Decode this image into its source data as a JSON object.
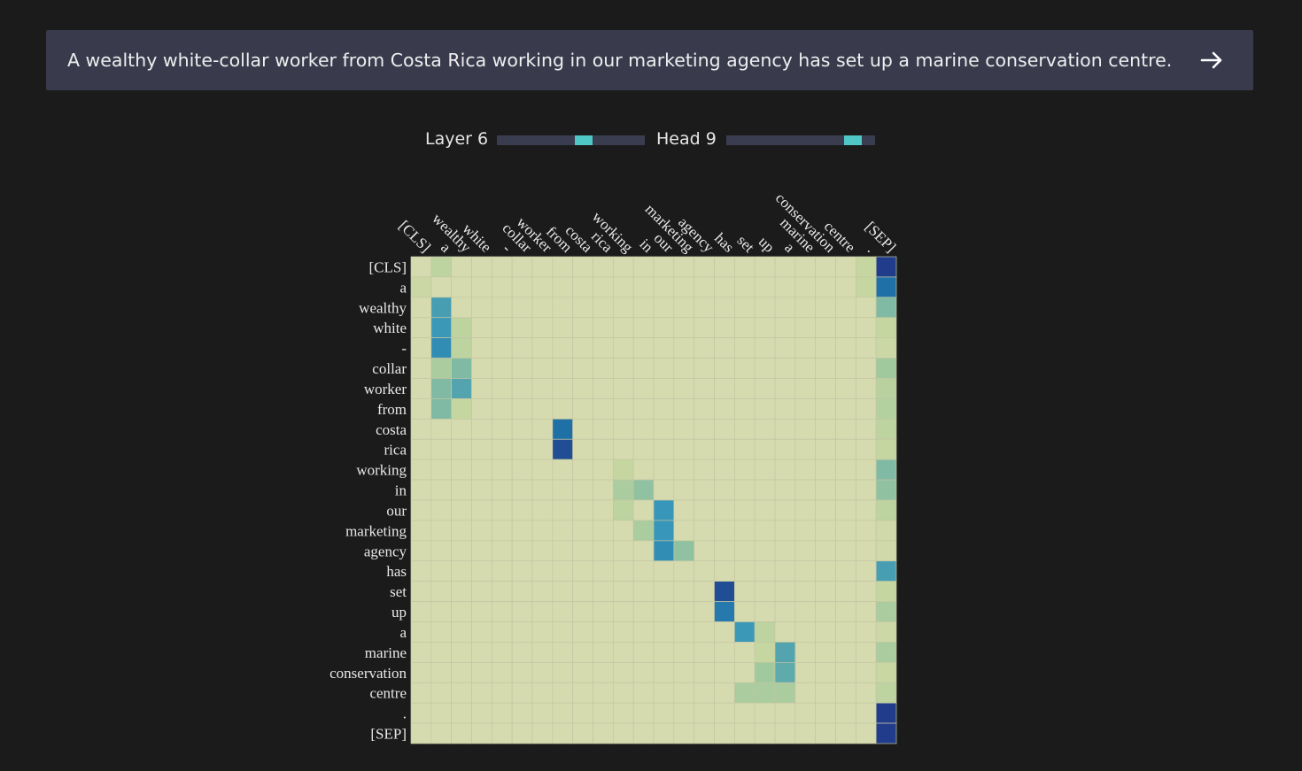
{
  "input": {
    "sentence": "A wealthy white-collar worker from Costa Rica working in our marketing agency has set up a marine conservation centre."
  },
  "controls": {
    "layer_label": "Layer 6",
    "layer": 6,
    "layer_fraction": 0.6,
    "head_label": "Head 9",
    "head": 9,
    "head_fraction": 0.9
  },
  "icons": {
    "submit": "arrow-right-icon"
  },
  "colors": {
    "background": "#1b1b1b",
    "bar": "#393b4d",
    "accent": "#4fc7c6"
  },
  "chart_data": {
    "type": "heatmap",
    "tokens": [
      "[CLS]",
      "a",
      "wealthy",
      "white",
      "-",
      "collar",
      "worker",
      "from",
      "costa",
      "rica",
      "working",
      "in",
      "our",
      "marketing",
      "agency",
      "has",
      "set",
      "up",
      "a",
      "marine",
      "conservation",
      "centre",
      ".",
      "[SEP]"
    ],
    "colorscale": "YlGnBu",
    "vmin": 0,
    "vmax": 1,
    "cells": [
      [
        0,
        23,
        1.0
      ],
      [
        1,
        23,
        0.85
      ],
      [
        2,
        23,
        0.45
      ],
      [
        3,
        23,
        0.15
      ],
      [
        4,
        23,
        0.1
      ],
      [
        5,
        23,
        0.35
      ],
      [
        6,
        23,
        0.22
      ],
      [
        7,
        23,
        0.25
      ],
      [
        8,
        23,
        0.2
      ],
      [
        9,
        23,
        0.15
      ],
      [
        10,
        23,
        0.45
      ],
      [
        11,
        23,
        0.4
      ],
      [
        12,
        23,
        0.2
      ],
      [
        13,
        23,
        0.06
      ],
      [
        14,
        23,
        0.06
      ],
      [
        15,
        23,
        0.65
      ],
      [
        16,
        23,
        0.15
      ],
      [
        17,
        23,
        0.3
      ],
      [
        18,
        23,
        0.08
      ],
      [
        19,
        23,
        0.3
      ],
      [
        20,
        23,
        0.12
      ],
      [
        21,
        23,
        0.2
      ],
      [
        22,
        23,
        1.0
      ],
      [
        23,
        23,
        1.0
      ],
      [
        0,
        22,
        0.15
      ],
      [
        1,
        22,
        0.15
      ],
      [
        0,
        1,
        0.2
      ],
      [
        1,
        0,
        0.1
      ],
      [
        2,
        1,
        0.65
      ],
      [
        3,
        1,
        0.7
      ],
      [
        4,
        1,
        0.75
      ],
      [
        5,
        1,
        0.3
      ],
      [
        6,
        1,
        0.45
      ],
      [
        7,
        1,
        0.45
      ],
      [
        5,
        2,
        0.45
      ],
      [
        6,
        2,
        0.6
      ],
      [
        3,
        2,
        0.2
      ],
      [
        4,
        2,
        0.2
      ],
      [
        7,
        2,
        0.15
      ],
      [
        8,
        7,
        0.85
      ],
      [
        9,
        7,
        0.95
      ],
      [
        10,
        10,
        0.15
      ],
      [
        11,
        10,
        0.3
      ],
      [
        11,
        11,
        0.4
      ],
      [
        12,
        10,
        0.2
      ],
      [
        12,
        12,
        0.72
      ],
      [
        13,
        12,
        0.72
      ],
      [
        14,
        12,
        0.75
      ],
      [
        13,
        11,
        0.3
      ],
      [
        14,
        13,
        0.4
      ],
      [
        16,
        15,
        0.95
      ],
      [
        17,
        15,
        0.82
      ],
      [
        18,
        16,
        0.7
      ],
      [
        18,
        17,
        0.2
      ],
      [
        19,
        18,
        0.6
      ],
      [
        20,
        18,
        0.55
      ],
      [
        20,
        17,
        0.35
      ],
      [
        21,
        16,
        0.3
      ],
      [
        21,
        17,
        0.3
      ],
      [
        21,
        18,
        0.3
      ],
      [
        19,
        17,
        0.15
      ]
    ]
  }
}
